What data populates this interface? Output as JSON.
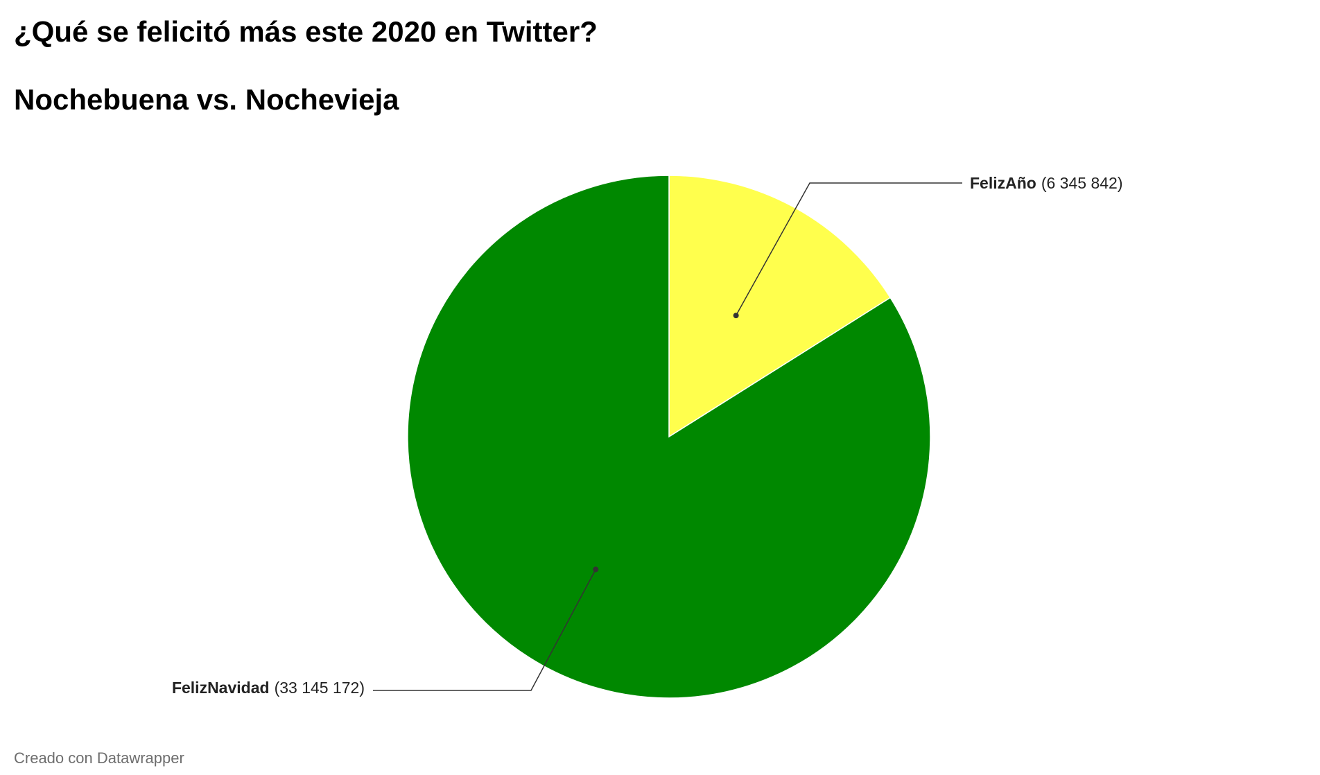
{
  "header": {
    "title": "¿Qué se felicitó más este 2020 en Twitter?",
    "subtitle": "Nochebuena vs. Nochevieja"
  },
  "footer": {
    "credit": "Creado con Datawrapper"
  },
  "chart_data": {
    "type": "pie",
    "title": "¿Qué se felicitó más este 2020 en Twitter?",
    "subtitle": "Nochebuena vs. Nochevieja",
    "slices": [
      {
        "name": "FelizAño",
        "value": 6345842,
        "value_label": "(6 345 842)",
        "color": "#ffff4d"
      },
      {
        "name": "FelizNavidad",
        "value": 33145172,
        "value_label": "(33 145 172)",
        "color": "#008800"
      }
    ],
    "start_angle": "12 o'clock",
    "direction": "clockwise",
    "legend": "none",
    "labels": "outside with leader lines"
  }
}
